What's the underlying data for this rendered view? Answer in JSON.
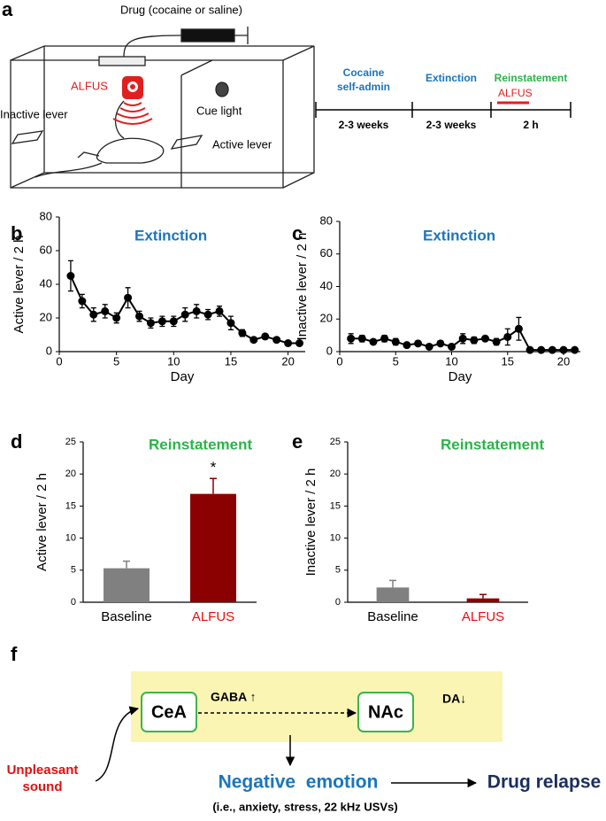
{
  "panel_labels": [
    "a",
    "b",
    "c",
    "d",
    "e",
    "f"
  ],
  "panel_a": {
    "drug": "Drug (cocaine or saline)",
    "alfus": "ALFUS",
    "inactive_lever": "Inactive lever",
    "cue_light": "Cue light",
    "active_lever": "Active lever",
    "timeline": [
      {
        "name": [
          "Cocaine",
          "self-admin"
        ],
        "duration": "2-3 weeks"
      },
      {
        "name": [
          "Extinction"
        ],
        "duration": "2-3 weeks"
      },
      {
        "name": [
          "Reinstatement"
        ],
        "duration": "2 h",
        "note": "ALFUS"
      }
    ]
  },
  "chart_data": [
    {
      "type": "line",
      "title": "Extinction",
      "title_color": "#1b75bc",
      "x_label": "Day",
      "y_label": "Active lever / 2 h",
      "x": [
        1,
        2,
        3,
        4,
        5,
        6,
        7,
        8,
        9,
        10,
        11,
        12,
        13,
        14,
        15,
        16,
        17,
        18,
        19,
        20,
        21
      ],
      "series": [
        {
          "name": "Active lever",
          "color": "#000000",
          "values": [
            45,
            30,
            22,
            24,
            20,
            32,
            21,
            17,
            18,
            18,
            22,
            24,
            22,
            24,
            17,
            11,
            7,
            9,
            7,
            5,
            5
          ],
          "errors": [
            9,
            4,
            4,
            4,
            3,
            6,
            3,
            3,
            3,
            3,
            4,
            4,
            3,
            3,
            4,
            2,
            1,
            1,
            1,
            1,
            1
          ]
        }
      ],
      "xlim": [
        0,
        21.5
      ],
      "xticks": [
        0,
        5,
        10,
        15,
        20
      ],
      "ylim": [
        0,
        80
      ],
      "yticks": [
        0,
        20,
        40,
        60,
        80
      ]
    },
    {
      "type": "line",
      "title": "Extinction",
      "title_color": "#1b75bc",
      "x_label": "Day",
      "y_label": "Inactive lever / 2 h",
      "x": [
        1,
        2,
        3,
        4,
        5,
        6,
        7,
        8,
        9,
        10,
        11,
        12,
        13,
        14,
        15,
        16,
        17,
        18,
        19,
        20,
        21
      ],
      "series": [
        {
          "name": "Inactive lever",
          "color": "#000000",
          "values": [
            8,
            8,
            6,
            8,
            6,
            4,
            5,
            3,
            5,
            3,
            8,
            7,
            8,
            6,
            9,
            14,
            1,
            1,
            1,
            1,
            1
          ],
          "errors": [
            3,
            2,
            1,
            2,
            2,
            1,
            1,
            1,
            1,
            1,
            3,
            2,
            1,
            2,
            5,
            7,
            1,
            1,
            1,
            1,
            0
          ]
        }
      ],
      "xlim": [
        0,
        21.5
      ],
      "xticks": [
        0,
        5,
        10,
        15,
        20
      ],
      "ylim": [
        0,
        80
      ],
      "yticks": [
        0,
        20,
        40,
        60,
        80
      ]
    },
    {
      "type": "bar",
      "title": "Reinstatement",
      "title_color": "#2db34a",
      "y_label": "Active lever / 2 h",
      "categories": [
        "Baseline",
        "ALFUS"
      ],
      "category_colors": [
        "#000000",
        "#e01010"
      ],
      "values": [
        5.3,
        16.9
      ],
      "errors": [
        1.1,
        2.4
      ],
      "colors": [
        "#808080",
        "#8b0000"
      ],
      "annotation": "*",
      "ylim": [
        0,
        25
      ],
      "yticks": [
        0,
        5,
        10,
        15,
        20,
        25
      ]
    },
    {
      "type": "bar",
      "title": "Reinstatement",
      "title_color": "#2db34a",
      "y_label": "Inactive lever / 2 h",
      "categories": [
        "Baseline",
        "ALFUS"
      ],
      "category_colors": [
        "#000000",
        "#e01010"
      ],
      "values": [
        2.3,
        0.6
      ],
      "errors": [
        1.1,
        0.6
      ],
      "colors": [
        "#808080",
        "#8b0000"
      ],
      "ylim": [
        0,
        25
      ],
      "yticks": [
        0,
        5,
        10,
        15,
        20,
        25
      ]
    }
  ],
  "panel_f": {
    "cea": "CeA",
    "nac": "NAc",
    "gaba": "GABA ↑",
    "da": "DA↓",
    "sound": [
      "Unpleasant",
      "sound"
    ],
    "emotion": "Negative  emotion",
    "relapse": "Drug relapse",
    "examples": "(i.e., anxiety, stress, 22 kHz USVs)"
  }
}
